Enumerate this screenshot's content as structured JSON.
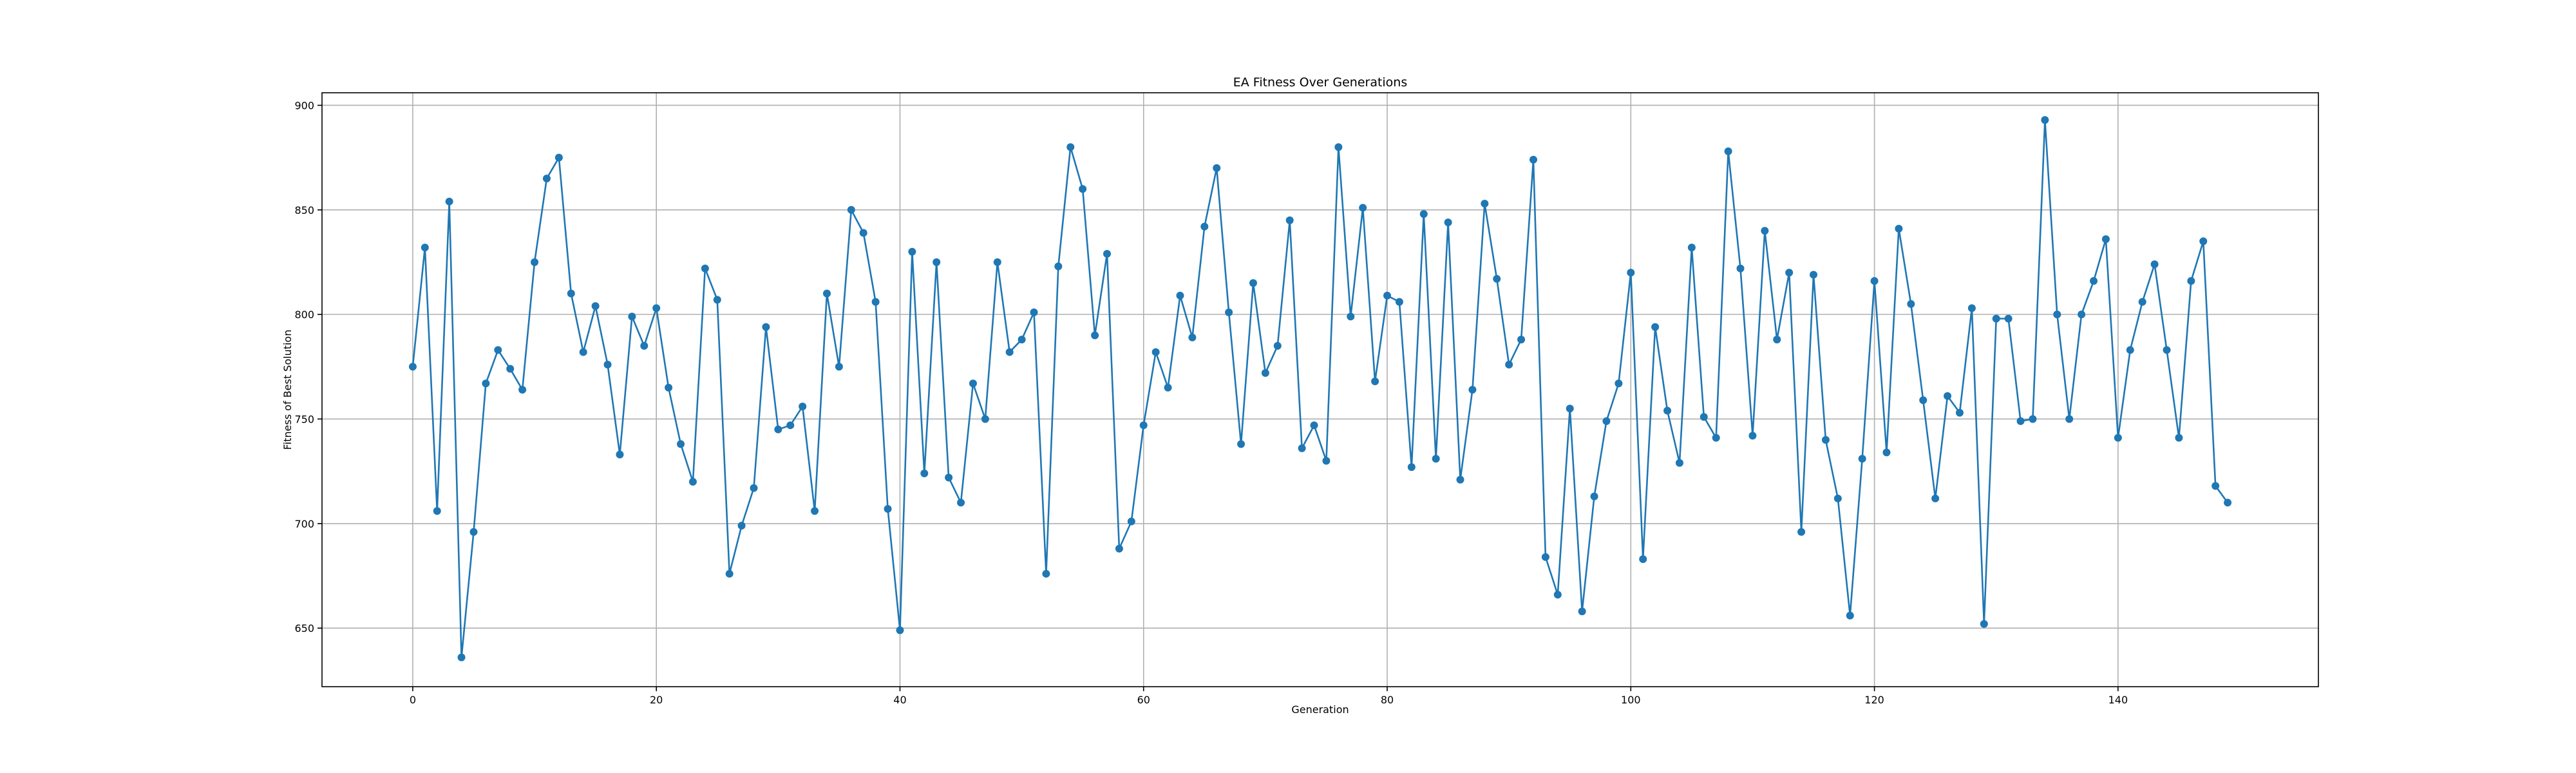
{
  "chart_data": {
    "type": "line",
    "title": "EA Fitness Over Generations",
    "xlabel": "Generation",
    "ylabel": "Fitness of Best Solution",
    "xlim": [
      -7.45,
      156.45
    ],
    "ylim": [
      622,
      906
    ],
    "xticks": [
      0,
      20,
      40,
      60,
      80,
      100,
      120,
      140
    ],
    "yticks": [
      650,
      700,
      750,
      800,
      850,
      900
    ],
    "grid": true,
    "marker": "circle",
    "color": "#1f77b4",
    "series": [
      {
        "values": [
          775,
          832,
          706,
          854,
          636,
          696,
          767,
          783,
          774,
          764,
          825,
          865,
          875,
          810,
          782,
          804,
          776,
          733,
          799,
          785,
          803,
          765,
          738,
          720,
          822,
          807,
          676,
          699,
          717,
          794,
          745,
          747,
          756,
          706,
          810,
          775,
          850,
          839,
          806,
          707,
          649,
          830,
          724,
          825,
          722,
          710,
          767,
          750,
          825,
          782,
          788,
          801,
          676,
          823,
          880,
          860,
          790,
          829,
          688,
          701,
          747,
          782,
          765,
          809,
          789,
          842,
          870,
          801,
          738,
          815,
          772,
          785,
          845,
          736,
          747,
          730,
          880,
          799,
          851,
          768,
          809,
          806,
          727,
          848,
          731,
          844,
          721,
          764,
          853,
          817,
          776,
          788,
          874,
          684,
          666,
          755,
          658,
          713,
          749,
          767,
          820,
          683,
          794,
          754,
          729,
          832,
          751,
          741,
          878,
          822,
          742,
          840,
          788,
          820,
          696,
          819,
          740,
          712,
          656,
          731,
          816,
          734,
          841,
          805,
          759,
          712,
          761,
          753,
          803,
          652,
          798,
          798,
          749,
          750,
          893,
          800,
          750,
          800,
          816,
          836,
          741,
          783,
          806,
          824,
          783,
          741,
          816,
          835,
          718,
          710
        ]
      }
    ]
  }
}
